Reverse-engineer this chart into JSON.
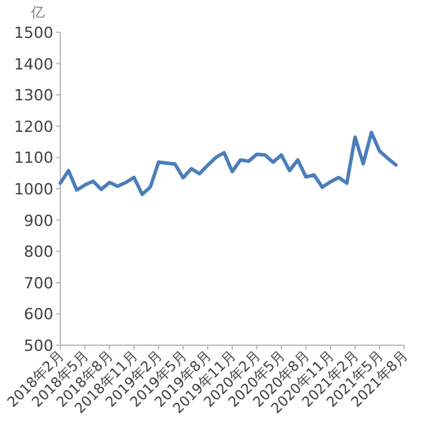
{
  "chart_data": {
    "type": "line",
    "ylabel": "亿",
    "categories": [
      "2018年2月",
      null,
      null,
      "2018年5月",
      null,
      null,
      "2018年8月",
      null,
      null,
      "2018年11月",
      null,
      null,
      "2019年2月",
      null,
      null,
      "2019年5月",
      null,
      null,
      "2019年8月",
      null,
      null,
      "2019年11月",
      null,
      null,
      "2020年2月",
      null,
      null,
      "2020年5月",
      null,
      null,
      "2020年8月",
      null,
      null,
      "2020年11月",
      null,
      null,
      "2021年2月",
      null,
      null,
      "2021年5月",
      null,
      null,
      "2021年8月"
    ],
    "series": [
      {
        "color": "#4a7ebb",
        "values": [
          1018,
          1058,
          996,
          1012,
          1024,
          998,
          1020,
          1008,
          1020,
          1036,
          982,
          1006,
          1085,
          1082,
          1079,
          1035,
          1064,
          1048,
          1075,
          1100,
          1115,
          1055,
          1092,
          1088,
          1110,
          1108,
          1085,
          1108,
          1058,
          1092,
          1038,
          1044,
          1005,
          1022,
          1036,
          1018,
          1165,
          1080,
          1180,
          1120,
          1097,
          1076,
          null
        ]
      }
    ],
    "ylim": [
      500,
      1500
    ],
    "yticks": [
      500,
      600,
      700,
      800,
      900,
      1000,
      1100,
      1200,
      1300,
      1400,
      1500
    ],
    "grid": false
  }
}
